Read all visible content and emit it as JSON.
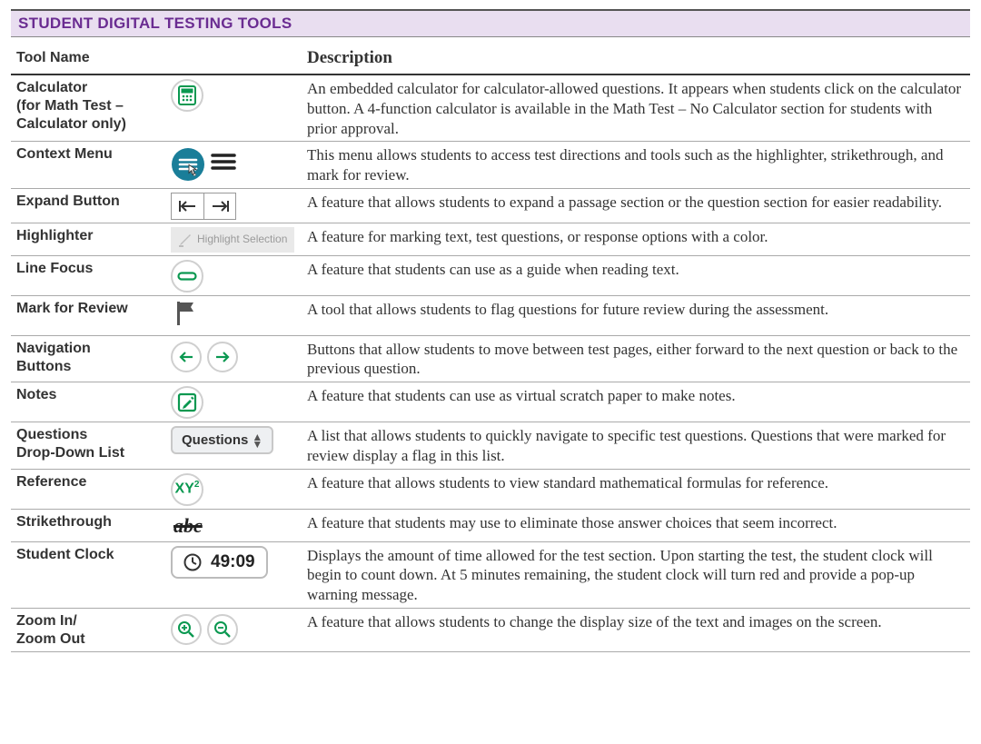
{
  "colors": {
    "banner_bg": "#e9def0",
    "banner_text": "#6a2c91",
    "header_text": "#7a3a9e",
    "rule": "#333333",
    "row_rule": "#aaaaaa",
    "icon_green": "#0a9850",
    "icon_teal": "#1a7e99",
    "icon_gray": "#6f6f6f",
    "btn_bg": "#eef0f2",
    "hl_bg": "#e9e9e9"
  },
  "banner": {
    "title": "STUDENT DIGITAL TESTING TOOLS"
  },
  "headers": {
    "tool": "Tool Name",
    "desc": "Description"
  },
  "rows": [
    {
      "name_html": "Calculator<br>(for Math Test –<br>Calculator only)",
      "icon": "calculator",
      "desc": "An embedded calculator for calculator-allowed questions. It appears when students click on the calculator button. A 4-function calculator is available in the Math Test – No Calculator section for students with prior approval."
    },
    {
      "name_html": "Context Menu",
      "icon": "context-menu",
      "desc": "This menu allows students to access test directions and tools such as the highlighter, strikethrough, and mark for review."
    },
    {
      "name_html": "Expand Button",
      "icon": "expand",
      "desc": "A feature that allows students to expand a passage section or the question section for easier readability."
    },
    {
      "name_html": "Highlighter",
      "icon": "highlighter",
      "hl_label": "Highlight Selection",
      "desc": "A feature for marking text, test questions, or response options with a color."
    },
    {
      "name_html": "Line Focus",
      "icon": "line-focus",
      "desc": "A feature that students can use as a guide when reading text."
    },
    {
      "name_html": "Mark for Review",
      "icon": "flag",
      "desc": "A tool that allows students to flag questions for future review during the assessment."
    },
    {
      "name_html": "Navigation<br>Buttons",
      "icon": "nav",
      "desc": "Buttons that allow students to move between test pages, either forward to the next question or back to the previous question."
    },
    {
      "name_html": "Notes",
      "icon": "notes",
      "desc": "A feature that students can use as virtual scratch paper to make notes."
    },
    {
      "name_html": "Questions<br>Drop-Down List",
      "icon": "questions-dd",
      "dd_label": "Questions",
      "desc": "A list that allows students to quickly navigate to specific test questions. Questions that were marked for review display a flag in this list."
    },
    {
      "name_html": "Reference",
      "icon": "reference",
      "ref_label": "XY",
      "desc": "A feature that allows students to view standard mathematical formulas for reference."
    },
    {
      "name_html": "Strikethrough",
      "icon": "strike",
      "strike_label": "abc",
      "desc": "A feature that students may use to eliminate those answer choices that seem incorrect."
    },
    {
      "name_html": "Student Clock",
      "icon": "clock",
      "clock_label": "49:09",
      "desc": "Displays the amount of time allowed for the test section. Upon starting the test, the student clock will begin to count down. At 5 minutes remaining, the student clock will turn red and provide a pop-up warning message."
    },
    {
      "name_html": "Zoom In/<br>Zoom Out",
      "icon": "zoom",
      "desc": "A feature that allows students to change the display size of the text and images on the screen."
    }
  ]
}
